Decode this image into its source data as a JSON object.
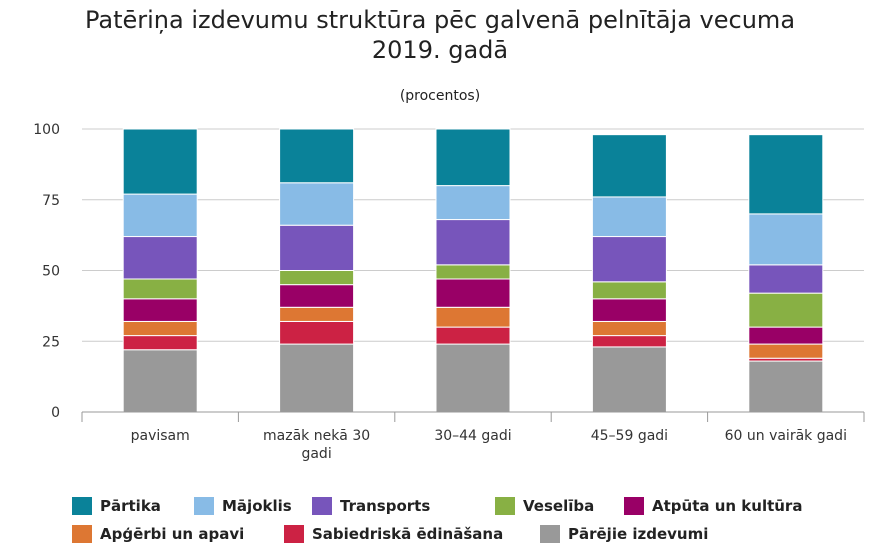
{
  "chart_data": {
    "type": "bar",
    "stacked": true,
    "title": "Patēriņa izdevumu struktūra pēc galvenā pelnītāja vecuma",
    "title_line2": "2019. gadā",
    "subtitle": "(procentos)",
    "xlabel": "",
    "ylabel": "",
    "ylim": [
      0,
      100
    ],
    "yticks": [
      "0",
      "25",
      "50",
      "75",
      "100"
    ],
    "grid": true,
    "legend_position": "bottom",
    "categories": [
      [
        "pavisam"
      ],
      [
        "mazāk nekā 30",
        "gadi"
      ],
      [
        "30–44 gadi"
      ],
      [
        "45–59 gadi"
      ],
      [
        "60 un vairāk gadi"
      ]
    ],
    "series": [
      {
        "name": "Pārējie izdevumi",
        "color": "#999999",
        "values": [
          22,
          24,
          24,
          23,
          18
        ]
      },
      {
        "name": "Sabiedriskā ēdināšana",
        "color": "#cc2244",
        "values": [
          5,
          8,
          6,
          4,
          1
        ]
      },
      {
        "name": "Apģērbi un apavi",
        "color": "#dd7733",
        "values": [
          5,
          5,
          7,
          5,
          5
        ]
      },
      {
        "name": "Atpūta un kultūra",
        "color": "#990066",
        "values": [
          8,
          8,
          10,
          8,
          6
        ]
      },
      {
        "name": "Veselība",
        "color": "#88b044",
        "values": [
          7,
          5,
          5,
          6,
          12
        ]
      },
      {
        "name": "Transports",
        "color": "#7755bb",
        "values": [
          15,
          16,
          16,
          16,
          10
        ]
      },
      {
        "name": "Mājoklis",
        "color": "#88bbe6",
        "values": [
          15,
          15,
          12,
          14,
          18
        ]
      },
      {
        "name": "Pārtika",
        "color": "#0a8299",
        "values": [
          23,
          19,
          20,
          22,
          28
        ]
      }
    ],
    "legend_order": [
      "Pārtika",
      "Mājoklis",
      "Transports",
      "Veselība",
      "Atpūta un kultūra",
      "Apģērbi un apavi",
      "Sabiedriskā ēdināšana",
      "Pārējie izdevumi"
    ]
  }
}
